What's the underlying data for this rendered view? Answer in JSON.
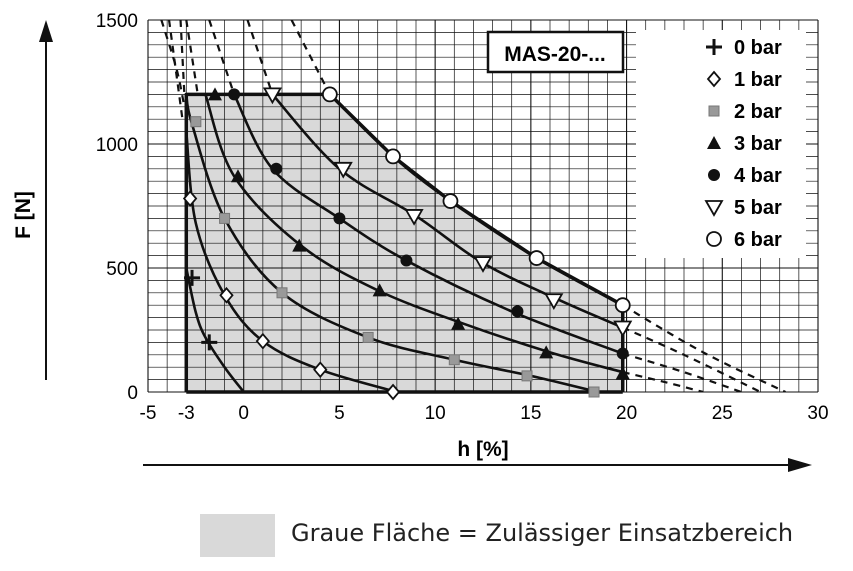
{
  "chart_data": {
    "type": "line",
    "title": "MAS-20-...",
    "xlabel": "h  [%]",
    "ylabel": "F  [N]",
    "xlim": [
      -5,
      30
    ],
    "ylim": [
      0,
      1500
    ],
    "x_ticks": [
      -5,
      -3,
      0,
      5,
      10,
      15,
      20,
      25,
      30
    ],
    "y_ticks": [
      0,
      500,
      1000,
      1500
    ],
    "x_tick_labels": [
      "-5",
      "-3",
      "0",
      "5",
      "10",
      "15",
      "20",
      "25",
      "30"
    ],
    "y_tick_labels": [
      "0",
      "500",
      "1000",
      "1500"
    ],
    "grid": true,
    "legend_position": "top-right",
    "allowed_region": {
      "label": "Graue Fläche = Zulässiger Einsatzbereich",
      "color": "#d9d9d9",
      "boundary": [
        [
          -3,
          0
        ],
        [
          -3,
          1200
        ],
        [
          4.5,
          1200
        ],
        [
          7.8,
          950
        ],
        [
          10.8,
          770
        ],
        [
          15.3,
          540
        ],
        [
          19.8,
          350
        ],
        [
          19.8,
          0
        ]
      ]
    },
    "series": [
      {
        "name": "0 bar",
        "marker": "plus",
        "curve": [
          [
            -3,
            500
          ],
          [
            -2.5,
            320
          ],
          [
            -2,
            220
          ],
          [
            -1,
            100
          ],
          [
            0,
            0
          ]
        ],
        "markers": [
          [
            -2.7,
            460
          ],
          [
            -1.8,
            200
          ]
        ]
      },
      {
        "name": "1 bar",
        "marker": "diamond",
        "curve": [
          [
            -3,
            1050
          ],
          [
            -2.5,
            680
          ],
          [
            -1,
            390
          ],
          [
            1,
            205
          ],
          [
            4,
            90
          ],
          [
            8,
            0
          ]
        ],
        "markers": [
          [
            -2.8,
            780
          ],
          [
            -0.9,
            390
          ],
          [
            1,
            205
          ],
          [
            4,
            90
          ],
          [
            7.8,
            0
          ]
        ]
      },
      {
        "name": "2 bar",
        "marker": "square",
        "curve": [
          [
            -3,
            1200
          ],
          [
            -2.7,
            1080
          ],
          [
            -1,
            700
          ],
          [
            2,
            400
          ],
          [
            6.5,
            220
          ],
          [
            11,
            130
          ],
          [
            15,
            65
          ],
          [
            18.5,
            0
          ]
        ],
        "markers": [
          [
            -2.5,
            1090
          ],
          [
            -1,
            700
          ],
          [
            2,
            400
          ],
          [
            6.5,
            220
          ],
          [
            11,
            130
          ],
          [
            14.8,
            65
          ],
          [
            18.3,
            0
          ]
        ]
      },
      {
        "name": "3 bar",
        "marker": "triangle-up",
        "curve": [
          [
            -2,
            1200
          ],
          [
            -0.5,
            870
          ],
          [
            3,
            590
          ],
          [
            7,
            410
          ],
          [
            11.5,
            275
          ],
          [
            16,
            160
          ],
          [
            19.8,
            80
          ]
        ],
        "markers": [
          [
            -1.5,
            1200
          ],
          [
            -0.3,
            870
          ],
          [
            2.9,
            590
          ],
          [
            7.1,
            410
          ],
          [
            11.2,
            275
          ],
          [
            15.8,
            160
          ],
          [
            19.8,
            75
          ]
        ]
      },
      {
        "name": "4 bar",
        "marker": "circle-filled",
        "curve": [
          [
            -0.5,
            1200
          ],
          [
            1.5,
            900
          ],
          [
            5,
            700
          ],
          [
            8.5,
            530
          ],
          [
            14,
            325
          ],
          [
            19.8,
            155
          ]
        ],
        "markers": [
          [
            -0.5,
            1200
          ],
          [
            1.7,
            900
          ],
          [
            5,
            700
          ],
          [
            8.5,
            530
          ],
          [
            14.3,
            325
          ],
          [
            19.8,
            155
          ]
        ]
      },
      {
        "name": "5 bar",
        "marker": "triangle-down",
        "curve": [
          [
            1.5,
            1200
          ],
          [
            5,
            900
          ],
          [
            9,
            710
          ],
          [
            12.5,
            520
          ],
          [
            16.5,
            370
          ],
          [
            19.8,
            260
          ]
        ],
        "markers": [
          [
            1.5,
            1200
          ],
          [
            5.2,
            900
          ],
          [
            8.9,
            710
          ],
          [
            12.5,
            520
          ],
          [
            16.2,
            370
          ],
          [
            19.8,
            260
          ]
        ]
      },
      {
        "name": "6 bar",
        "marker": "circle-open",
        "curve": [
          [
            4.5,
            1200
          ],
          [
            7.8,
            950
          ],
          [
            10.8,
            770
          ],
          [
            15.3,
            540
          ],
          [
            19.8,
            350
          ]
        ],
        "markers": [
          [
            4.5,
            1200
          ],
          [
            7.8,
            950
          ],
          [
            10.8,
            770
          ],
          [
            15.3,
            540
          ],
          [
            19.8,
            350
          ]
        ]
      }
    ],
    "extrapolation_dashed": [
      [
        [
          -3.3,
          1500
        ],
        [
          -3.1,
          1200
        ]
      ],
      [
        [
          -3.9,
          1500
        ],
        [
          -3.2,
          1100
        ]
      ],
      [
        [
          -4.3,
          1500
        ],
        [
          -3.5,
          1300
        ],
        [
          -3.1,
          1150
        ]
      ],
      [
        [
          -3,
          1500
        ],
        [
          -2.4,
          1200
        ]
      ],
      [
        [
          -1.8,
          1500
        ],
        [
          -0.5,
          1200
        ]
      ],
      [
        [
          0.2,
          1500
        ],
        [
          1.5,
          1200
        ]
      ],
      [
        [
          2.5,
          1500
        ],
        [
          4.5,
          1200
        ]
      ],
      [
        [
          19.8,
          350
        ],
        [
          24,
          160
        ],
        [
          28.3,
          0
        ]
      ],
      [
        [
          19.8,
          260
        ],
        [
          23,
          150
        ],
        [
          27,
          0
        ]
      ],
      [
        [
          19.8,
          155
        ],
        [
          23,
          80
        ],
        [
          26,
          0
        ]
      ],
      [
        [
          19.8,
          80
        ],
        [
          22,
          40
        ],
        [
          24,
          0
        ]
      ]
    ]
  }
}
